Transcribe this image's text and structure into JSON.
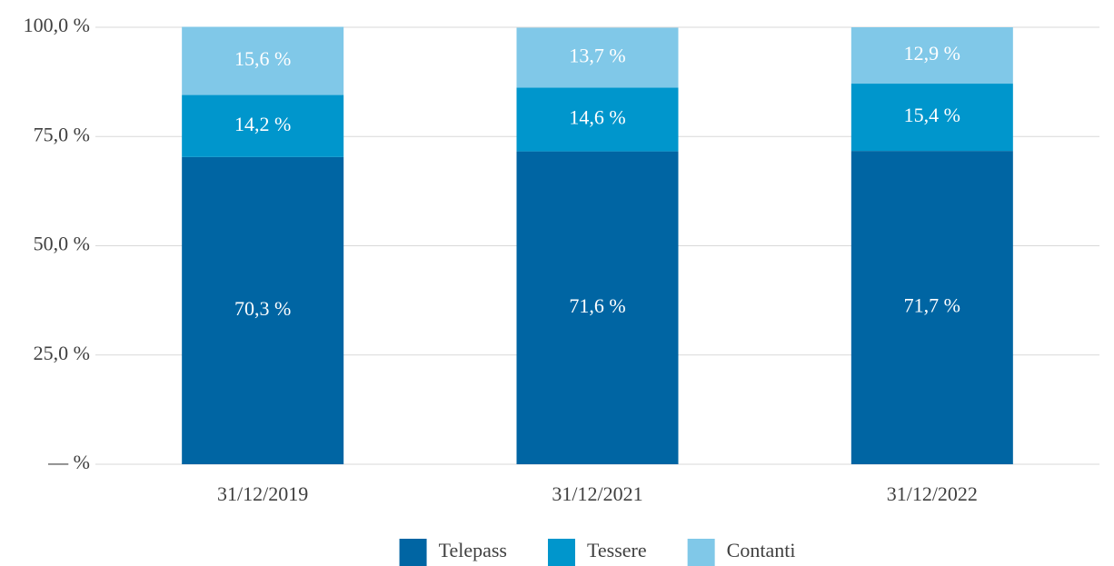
{
  "chart_data": {
    "type": "stacked_bar",
    "categories": [
      "31/12/2019",
      "31/12/2021",
      "31/12/2022"
    ],
    "series": [
      {
        "name": "Telepass",
        "color": "#0065a3",
        "values": [
          70.3,
          71.6,
          71.7
        ],
        "value_labels": [
          "70,3 %",
          "71,6 %",
          "71,7 %"
        ]
      },
      {
        "name": "Tessere",
        "color": "#0096cc",
        "values": [
          14.2,
          14.6,
          15.4
        ],
        "value_labels": [
          "14,2 %",
          "14,6 %",
          "15,4 %"
        ]
      },
      {
        "name": "Contanti",
        "color": "#80c8e8",
        "values": [
          15.6,
          13.7,
          12.9
        ],
        "value_labels": [
          "15,6 %",
          "13,7 %",
          "12,9 %"
        ]
      }
    ],
    "ylim": [
      0,
      100
    ],
    "yticks": [
      {
        "value": 0,
        "label": "— %"
      },
      {
        "value": 25,
        "label": "25,0 %"
      },
      {
        "value": 50,
        "label": "50,0 %"
      },
      {
        "value": 75,
        "label": "75,0 %"
      },
      {
        "value": 100,
        "label": "100,0 %"
      }
    ],
    "grid": true,
    "legend": "bottom"
  }
}
